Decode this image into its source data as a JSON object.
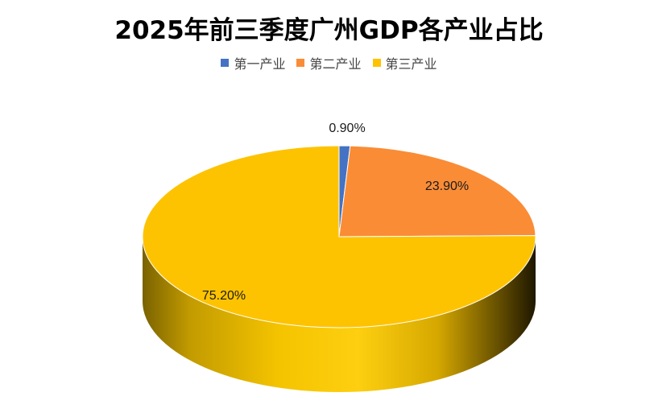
{
  "chart_data": {
    "type": "pie",
    "title": "2025年前三季度广州GDP各产业占比",
    "categories": [
      "第一产业",
      "第二产业",
      "第三产业"
    ],
    "values": [
      0.9,
      23.9,
      75.2
    ],
    "labels": [
      "0.90%",
      "23.90%",
      "75.20%"
    ],
    "colors": [
      "#4472C4",
      "#FA8C36",
      "#FDC300"
    ],
    "legend_position": "top",
    "style": "3d"
  }
}
